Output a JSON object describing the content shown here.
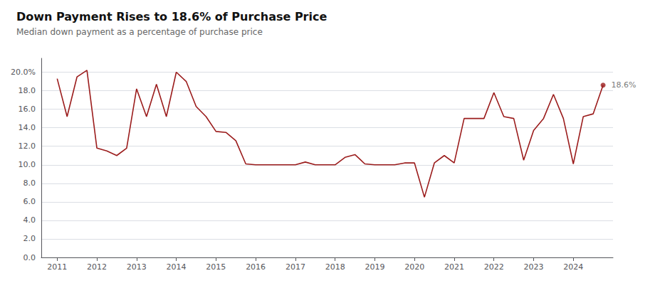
{
  "chart_data": {
    "type": "line",
    "title": "Down Payment Rises to 18.6% of Purchase Price",
    "subtitle": "Median down payment as a percentage of purchase price",
    "color": "#9b1c1c",
    "grid": true,
    "x": [
      2011.0,
      2011.25,
      2011.5,
      2011.75,
      2012.0,
      2012.25,
      2012.5,
      2012.75,
      2013.0,
      2013.25,
      2013.5,
      2013.75,
      2014.0,
      2014.25,
      2014.5,
      2014.75,
      2015.0,
      2015.25,
      2015.5,
      2015.75,
      2016.0,
      2016.25,
      2016.5,
      2016.75,
      2017.0,
      2017.25,
      2017.5,
      2017.75,
      2018.0,
      2018.25,
      2018.5,
      2018.75,
      2019.0,
      2019.25,
      2019.5,
      2019.75,
      2020.0,
      2020.25,
      2020.5,
      2020.75,
      2021.0,
      2021.25,
      2021.5,
      2021.75,
      2022.0,
      2022.25,
      2022.5,
      2022.75,
      2023.0,
      2023.25,
      2023.5,
      2023.75,
      2024.0,
      2024.25,
      2024.5,
      2024.75
    ],
    "values": [
      19.3,
      15.2,
      19.5,
      20.2,
      11.8,
      11.5,
      11.0,
      11.8,
      18.2,
      15.2,
      18.7,
      15.2,
      20.0,
      19.0,
      16.3,
      15.2,
      13.6,
      13.5,
      12.6,
      10.1,
      10.0,
      10.0,
      10.0,
      10.0,
      10.0,
      10.3,
      10.0,
      10.0,
      10.0,
      10.8,
      11.1,
      10.1,
      10.0,
      10.0,
      10.0,
      10.2,
      10.2,
      6.5,
      10.2,
      11.0,
      10.2,
      15.0,
      15.0,
      15.0,
      17.8,
      15.2,
      15.0,
      10.5,
      13.7,
      15.0,
      17.6,
      15.0,
      10.1,
      15.2,
      15.5,
      18.6
    ],
    "xlim": [
      2010.6,
      2025.0
    ],
    "xticks": [
      2011,
      2012,
      2013,
      2014,
      2015,
      2016,
      2017,
      2018,
      2019,
      2020,
      2021,
      2022,
      2023,
      2024
    ],
    "ylim": [
      0,
      21.5
    ],
    "yticks": [
      {
        "value": 0.0,
        "label": "0.0"
      },
      {
        "value": 2.0,
        "label": "2.0"
      },
      {
        "value": 4.0,
        "label": "4.0"
      },
      {
        "value": 6.0,
        "label": "6.0"
      },
      {
        "value": 8.0,
        "label": "8.0"
      },
      {
        "value": 10.0,
        "label": "10.0"
      },
      {
        "value": 12.0,
        "label": "12.0"
      },
      {
        "value": 14.0,
        "label": "14.0"
      },
      {
        "value": 16.0,
        "label": "16.0"
      },
      {
        "value": 18.0,
        "label": "18.0"
      },
      {
        "value": 20.0,
        "label": "20.0%"
      }
    ],
    "annotations": [
      {
        "text": "18.6%",
        "x": 2024.75,
        "y": 18.6
      }
    ]
  }
}
